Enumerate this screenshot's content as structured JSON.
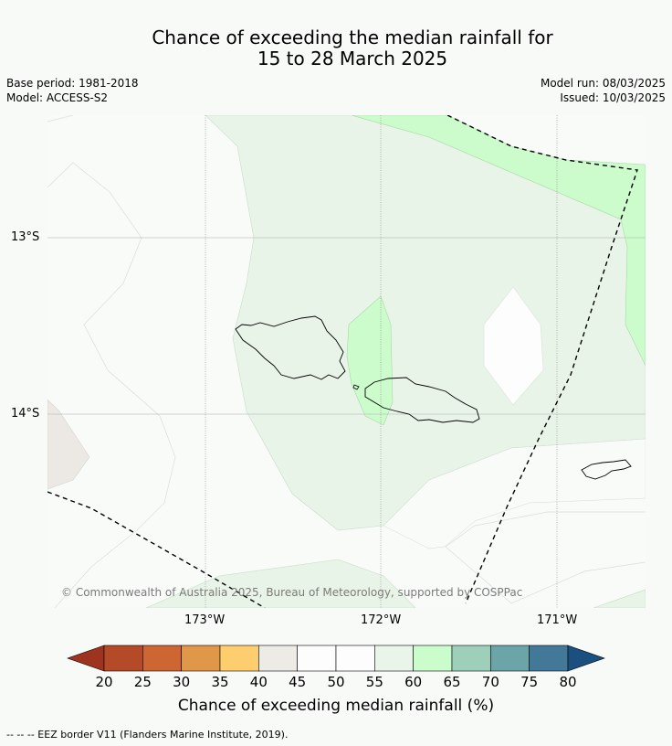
{
  "title": {
    "line1": "Chance of exceeding the median rainfall for",
    "line2": "15 to 28 March 2025"
  },
  "meta_left": {
    "base_period": "Base period: 1981-2018",
    "model": "Model: ACCESS-S2"
  },
  "meta_right": {
    "model_run": "Model run: 08/03/2025",
    "issued": "Issued: 10/03/2025"
  },
  "map": {
    "lat_labels": [
      "13°S",
      "14°S"
    ],
    "lon_labels": [
      "173°W",
      "172°W",
      "171°W"
    ],
    "copyright": "© Commonwealth of Australia 2025, Bureau of Meteorology, supported by COSPPac",
    "region_values": {
      "light_green": "55-60",
      "green": "60-65",
      "white": "45-55",
      "grey": "40-45"
    }
  },
  "colorbar": {
    "ticks": [
      "20",
      "25",
      "30",
      "35",
      "40",
      "45",
      "50",
      "55",
      "60",
      "65",
      "70",
      "75",
      "80"
    ],
    "colors": [
      "#9e3320",
      "#b44a27",
      "#cd6633",
      "#e09848",
      "#fece6e",
      "#edebe6",
      "#fdfdfd",
      "#fdfdfd",
      "#e9f5e8",
      "#cbfccb",
      "#9dcfba",
      "#6ba5a8",
      "#437899",
      "#1a4f80"
    ],
    "label": "Chance of exceeding median rainfall (%)"
  },
  "footer": "-- -- -- EEZ border V11 (Flanders Marine Institute, 2019)."
}
